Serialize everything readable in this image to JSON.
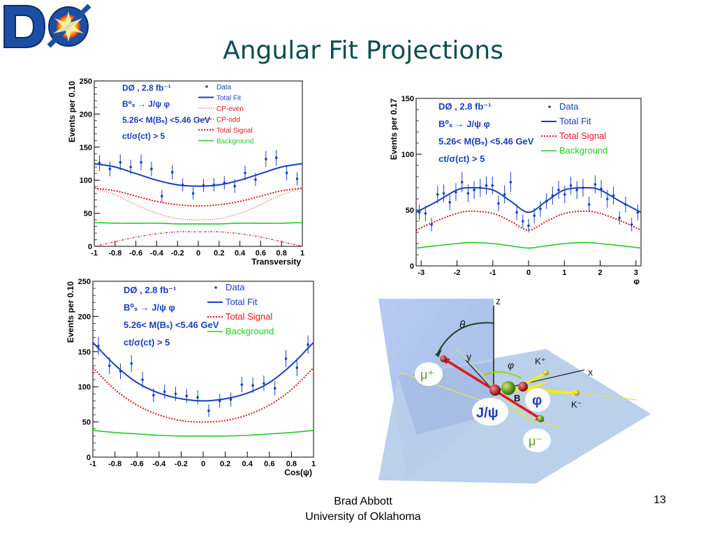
{
  "slide": {
    "title": "Angular Fit Projections",
    "author": "Brad Abbott",
    "affiliation": "University of Oklahoma",
    "page_number": "13"
  },
  "logo": {
    "text": "DØ",
    "colors": {
      "blue": "#1c4fa3",
      "yellow": "#f4d21f",
      "red": "#d8251c"
    }
  },
  "colors": {
    "data": "#1a3fbf",
    "total_fit": "#1a3fbf",
    "total_signal": "#e01818",
    "cp_even": "#e01818",
    "cp_odd": "#e01818",
    "background": "#22cc22",
    "annotation": "#1a3fbf",
    "slide_title": "#0f4d4f"
  },
  "chart_data": [
    {
      "type": "scatter",
      "panel": "transversity",
      "xlabel": "Transversity",
      "ylabel": "Events per 0.10",
      "xlim": [
        -1,
        1
      ],
      "ylim": [
        0,
        250
      ],
      "xticks": [
        "-1",
        "-0.8",
        "-0.6",
        "-0.4",
        "-0.2",
        "0",
        "0.2",
        "0.4",
        "0.6",
        "0.8",
        "1"
      ],
      "yticks": [
        "0",
        "50",
        "100",
        "150",
        "200",
        "250"
      ],
      "annotation": [
        "DØ , 2.8 fb⁻¹",
        "B⁰ₛ → J/ψ φ",
        "5.26< M(Bₛ) <5.46 GeV",
        "ct/σ(ct) > 5"
      ],
      "legend": [
        "Data",
        "Total Fit",
        "CP-even",
        "CP-odd",
        "Total Signal",
        "Background"
      ],
      "legend_position": "top-right",
      "data": {
        "x": [
          -0.95,
          -0.85,
          -0.75,
          -0.65,
          -0.55,
          -0.45,
          -0.35,
          -0.25,
          -0.15,
          -0.05,
          0.05,
          0.15,
          0.25,
          0.35,
          0.45,
          0.55,
          0.65,
          0.75,
          0.85,
          0.95
        ],
        "y": [
          126,
          117,
          127,
          120,
          127,
          117,
          76,
          112,
          93,
          80,
          92,
          93,
          96,
          91,
          111,
          101,
          132,
          134,
          111,
          102
        ],
        "err": [
          12,
          11,
          12,
          11,
          12,
          11,
          9,
          11,
          10,
          9,
          10,
          10,
          10,
          10,
          11,
          10,
          12,
          12,
          11,
          10
        ]
      },
      "series": [
        {
          "name": "Total Fit",
          "x": [
            -1,
            -0.8,
            -0.6,
            -0.4,
            -0.2,
            0,
            0.2,
            0.4,
            0.6,
            0.8,
            1
          ],
          "values": [
            125,
            120,
            110,
            100,
            93,
            91,
            93,
            100,
            110,
            120,
            125
          ]
        },
        {
          "name": "Total Signal",
          "x": [
            -1,
            -0.8,
            -0.6,
            -0.4,
            -0.2,
            0,
            0.2,
            0.4,
            0.6,
            0.8,
            1
          ],
          "values": [
            88,
            84,
            76,
            68,
            63,
            61,
            63,
            68,
            76,
            84,
            88
          ]
        },
        {
          "name": "CP-even",
          "x": [
            -1,
            -0.8,
            -0.6,
            -0.4,
            -0.2,
            0,
            0.2,
            0.4,
            0.6,
            0.8,
            1
          ],
          "values": [
            88,
            78,
            63,
            50,
            42,
            40,
            42,
            50,
            63,
            78,
            88
          ]
        },
        {
          "name": "CP-odd",
          "x": [
            -1,
            -0.8,
            -0.6,
            -0.4,
            -0.2,
            0,
            0.2,
            0.4,
            0.6,
            0.8,
            1
          ],
          "values": [
            0,
            7,
            14,
            19,
            22,
            22,
            22,
            19,
            14,
            7,
            0
          ]
        },
        {
          "name": "Background",
          "x": [
            -1,
            -0.8,
            -0.6,
            -0.4,
            -0.2,
            0,
            0.2,
            0.4,
            0.6,
            0.8,
            1
          ],
          "values": [
            36,
            35,
            35,
            35,
            34,
            34,
            34,
            35,
            35,
            35,
            36
          ]
        }
      ]
    },
    {
      "type": "scatter",
      "panel": "phi",
      "xlabel": "φ",
      "ylabel": "Events per 0.17",
      "xlim": [
        -3.14,
        3.14
      ],
      "ylim": [
        0,
        150
      ],
      "xticks": [
        "-3",
        "-2",
        "-1",
        "0",
        "1",
        "2",
        "3"
      ],
      "yticks": [
        "0",
        "50",
        "100",
        "150"
      ],
      "annotation": [
        "DØ , 2.8 fb⁻¹",
        "B⁰ₛ → J/ψ φ",
        "5.26< M(Bₛ) <5.46 GeV",
        "ct/σ(ct) > 5"
      ],
      "legend": [
        "Data",
        "Total Fit",
        "Total Signal",
        "Background"
      ],
      "legend_position": "top-right",
      "data": {
        "x": [
          -3.05,
          -2.88,
          -2.71,
          -2.54,
          -2.37,
          -2.2,
          -2.03,
          -1.86,
          -1.69,
          -1.52,
          -1.35,
          -1.18,
          -1.01,
          -0.84,
          -0.67,
          -0.5,
          -0.33,
          -0.16,
          0.0,
          0.16,
          0.33,
          0.5,
          0.67,
          0.84,
          1.01,
          1.18,
          1.35,
          1.52,
          1.69,
          1.86,
          2.03,
          2.2,
          2.37,
          2.54,
          2.71,
          2.88,
          3.05
        ],
        "y": [
          48,
          47,
          37,
          64,
          65,
          57,
          66,
          75,
          65,
          68,
          70,
          72,
          72,
          56,
          64,
          75,
          48,
          40,
          36,
          45,
          51,
          58,
          63,
          68,
          64,
          72,
          68,
          70,
          55,
          73,
          69,
          60,
          63,
          43,
          55,
          37,
          48
        ],
        "err": [
          7,
          7,
          6,
          8,
          8,
          7,
          8,
          9,
          8,
          8,
          8,
          8,
          8,
          7,
          8,
          9,
          7,
          6,
          6,
          7,
          7,
          7,
          8,
          8,
          8,
          8,
          8,
          8,
          7,
          8,
          8,
          8,
          8,
          6,
          7,
          6,
          7
        ]
      },
      "series": [
        {
          "name": "Total Fit",
          "x": [
            -3.14,
            -2.6,
            -2.0,
            -1.6,
            -1.0,
            -0.5,
            0,
            0.5,
            1.0,
            1.6,
            2.0,
            2.6,
            3.14
          ],
          "values": [
            48,
            57,
            68,
            70,
            68,
            58,
            48,
            58,
            68,
            70,
            68,
            57,
            48
          ]
        },
        {
          "name": "Total Signal",
          "x": [
            -3.14,
            -2.6,
            -2.0,
            -1.6,
            -1.0,
            -0.5,
            0,
            0.5,
            1.0,
            1.6,
            2.0,
            2.6,
            3.14
          ],
          "values": [
            32,
            40,
            47,
            49,
            47,
            40,
            32,
            40,
            47,
            49,
            47,
            40,
            32
          ]
        },
        {
          "name": "Background",
          "x": [
            -3.14,
            -2.6,
            -2.0,
            -1.6,
            -1.0,
            -0.5,
            0,
            0.5,
            1.0,
            1.6,
            2.0,
            2.6,
            3.14
          ],
          "values": [
            16,
            18,
            20,
            21,
            20,
            18,
            16,
            18,
            20,
            21,
            20,
            18,
            16
          ]
        }
      ]
    },
    {
      "type": "scatter",
      "panel": "cos-psi",
      "xlabel": "Cos(ψ)",
      "ylabel": "Events per 0.10",
      "xlim": [
        -1,
        1
      ],
      "ylim": [
        0,
        250
      ],
      "xticks": [
        "-1",
        "-0.8",
        "-0.6",
        "-0.4",
        "-0.2",
        "0",
        "0.2",
        "0.4",
        "0.6",
        "0.8",
        "1"
      ],
      "yticks": [
        "0",
        "50",
        "100",
        "150",
        "200",
        "250"
      ],
      "annotation": [
        "DØ , 2.8 fb⁻¹",
        "B⁰ₛ → J/ψ φ",
        "5.26< M(Bₛ) <5.46 GeV",
        "ct/σ(ct) > 5"
      ],
      "legend": [
        "Data",
        "Total Fit",
        "Total Signal",
        "Background"
      ],
      "legend_position": "top-right",
      "data": {
        "x": [
          -0.95,
          -0.85,
          -0.75,
          -0.65,
          -0.55,
          -0.45,
          -0.35,
          -0.25,
          -0.15,
          -0.05,
          0.05,
          0.15,
          0.25,
          0.35,
          0.45,
          0.55,
          0.65,
          0.75,
          0.85,
          0.95
        ],
        "y": [
          158,
          130,
          122,
          133,
          110,
          88,
          93,
          90,
          87,
          85,
          66,
          80,
          82,
          103,
          102,
          105,
          98,
          140,
          127,
          160
        ],
        "err": [
          13,
          12,
          11,
          12,
          11,
          10,
          10,
          10,
          10,
          10,
          9,
          10,
          10,
          11,
          11,
          11,
          10,
          12,
          12,
          13
        ]
      },
      "series": [
        {
          "name": "Total Fit",
          "x": [
            -1,
            -0.8,
            -0.6,
            -0.4,
            -0.2,
            0,
            0.2,
            0.4,
            0.6,
            0.8,
            1
          ],
          "values": [
            163,
            131,
            106,
            91,
            83,
            80,
            83,
            91,
            106,
            131,
            163
          ]
        },
        {
          "name": "Total Signal",
          "x": [
            -1,
            -0.8,
            -0.6,
            -0.4,
            -0.2,
            0,
            0.2,
            0.4,
            0.6,
            0.8,
            1
          ],
          "values": [
            127,
            96,
            74,
            60,
            52,
            50,
            52,
            60,
            74,
            96,
            127
          ]
        },
        {
          "name": "Background",
          "x": [
            -1,
            -0.8,
            -0.6,
            -0.4,
            -0.2,
            0,
            0.2,
            0.4,
            0.6,
            0.8,
            1
          ],
          "values": [
            38,
            35,
            33,
            31,
            30,
            30,
            30,
            31,
            33,
            35,
            38
          ]
        }
      ]
    }
  ],
  "diagram": {
    "labels": {
      "z": "z",
      "theta": "θ",
      "y": "y",
      "phi_angle": "φ",
      "k_plus": "K⁺",
      "x": "x",
      "mu_plus": "μ⁺",
      "b": "B",
      "phi_particle": "φ",
      "jpsi": "J/ψ",
      "k_minus": "K⁻",
      "mu_minus": "μ⁻"
    }
  }
}
